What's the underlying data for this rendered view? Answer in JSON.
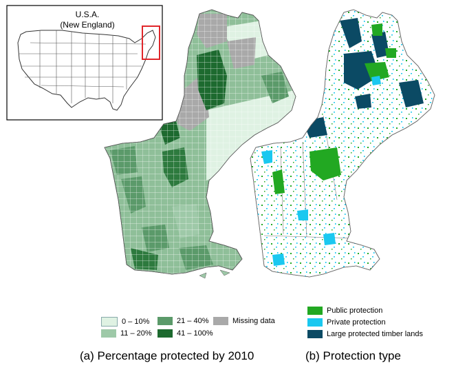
{
  "inset": {
    "title": "U.S.A.",
    "subtitle": "(New England)"
  },
  "legend_a": {
    "items": [
      {
        "label": "0 – 10%",
        "color": "#dff2e3"
      },
      {
        "label": "11 – 20%",
        "color": "#9ec9a8"
      },
      {
        "label": "21 – 40%",
        "color": "#5b9a6a"
      },
      {
        "label": "41 – 100%",
        "color": "#1d6a2f"
      },
      {
        "label": "Missing data",
        "color": "#a9a9a9"
      }
    ]
  },
  "legend_b": {
    "items": [
      {
        "label": "Public protection",
        "color": "#22a822"
      },
      {
        "label": "Private protection",
        "color": "#1ac8f0"
      },
      {
        "label": "Large protected timber lands",
        "color": "#0b4a64"
      }
    ]
  },
  "captions": {
    "a": "(a) Percentage protected by 2010",
    "b": "(b) Protection type"
  },
  "colors": {
    "highlight_box": "#e0262a",
    "outline": "#555555"
  }
}
